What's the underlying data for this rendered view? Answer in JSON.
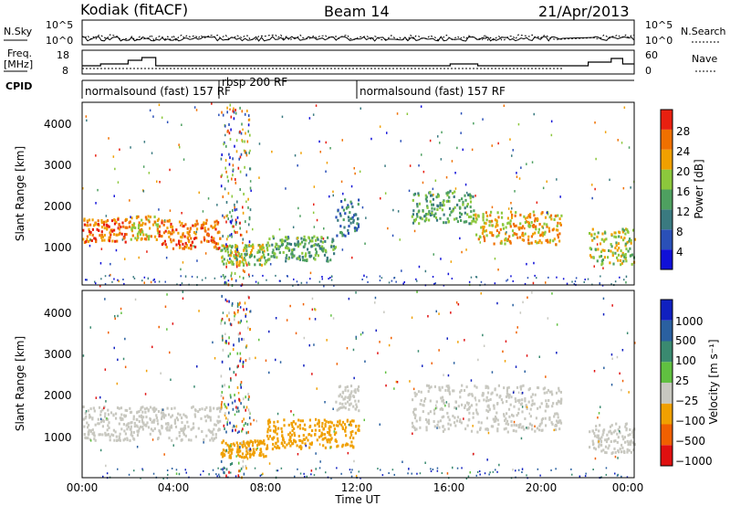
{
  "header": {
    "station": "Kodiak (fitACF)",
    "beam": "Beam 14",
    "date": "21/Apr/2013"
  },
  "noise_panel": {
    "left_label": "N.Sky",
    "right_label": "N.Search",
    "left_ticks": [
      "10^5",
      "10^0"
    ],
    "right_ticks": [
      "10^5",
      "10^0"
    ]
  },
  "freq_panel": {
    "left_label_line1": "Freq.",
    "left_label_line2": "[MHz]",
    "right_label": "Nave",
    "left_ticks": [
      "18",
      "8"
    ],
    "right_ticks": [
      "60",
      "0"
    ]
  },
  "cpid": {
    "label": "CPID",
    "segments": [
      {
        "text": "normalsound (fast) 157 RF",
        "start": "00:00",
        "end": "06:00"
      },
      {
        "text": "rbsp 200 RF",
        "start": "06:00",
        "end": "12:00"
      },
      {
        "text": "normalsound (fast) 157 RF",
        "start": "12:00",
        "end": "24:00"
      }
    ]
  },
  "power_panel": {
    "ylabel": "Slant Range [km]",
    "yticks": [
      "4000",
      "3000",
      "2000",
      "1000"
    ],
    "colorbar_label": "Power [dB]",
    "colorbar_ticks": [
      "28",
      "24",
      "20",
      "16",
      "12",
      "8",
      "4"
    ],
    "colors": [
      "#1010d8",
      "#2a50b8",
      "#3a7a80",
      "#4ea060",
      "#8cc83c",
      "#f0a000",
      "#f07000",
      "#e82010"
    ]
  },
  "velocity_panel": {
    "ylabel": "Slant Range [km]",
    "yticks": [
      "4000",
      "3000",
      "2000",
      "1000"
    ],
    "colorbar_label": "Velocity [m s⁻¹]",
    "colorbar_ticks": [
      "1000",
      "500",
      "100",
      "25",
      "−25",
      "−100",
      "−500",
      "−1000"
    ],
    "colors": [
      "#1020c0",
      "#2a60a0",
      "#3a8a70",
      "#60c040",
      "#c8c8c0",
      "#f0a000",
      "#f06000",
      "#e01010"
    ]
  },
  "x_axis": {
    "label": "Time UT",
    "ticks": [
      "00:00",
      "04:00",
      "08:00",
      "12:00",
      "16:00",
      "20:00",
      "00:00"
    ]
  },
  "chart_data": {
    "type": "heatmap",
    "title": "Kodiak (fitACF)",
    "subtitle": "Beam 14 — 21/Apr/2013",
    "xlabel": "Time UT",
    "ylabel": "Slant Range [km]",
    "xlim_hours": [
      0,
      24
    ],
    "ylim_km": [
      200,
      4600
    ],
    "grid": false,
    "power_bands": [
      {
        "t0": 0.0,
        "t1": 2.0,
        "r0": 1250,
        "r1": 1850,
        "level": 6
      },
      {
        "t0": 2.0,
        "t1": 3.3,
        "r0": 1300,
        "r1": 1900,
        "level": 5
      },
      {
        "t0": 3.3,
        "t1": 6.0,
        "r0": 1100,
        "r1": 1800,
        "level": 6
      },
      {
        "t0": 6.0,
        "t1": 8.0,
        "r0": 700,
        "r1": 1200,
        "level": 4
      },
      {
        "t0": 8.0,
        "t1": 11.0,
        "r0": 800,
        "r1": 1400,
        "level": 3
      },
      {
        "t0": 11.0,
        "t1": 12.0,
        "r0": 1400,
        "r1": 2300,
        "level": 2
      },
      {
        "t0": 14.3,
        "t1": 17.0,
        "r0": 1700,
        "r1": 2500,
        "level": 3
      },
      {
        "t0": 17.0,
        "t1": 20.8,
        "r0": 1200,
        "r1": 2000,
        "level": 5
      },
      {
        "t0": 22.0,
        "t1": 24.0,
        "r0": 700,
        "r1": 1600,
        "level": 4
      }
    ],
    "velocity_bands": [
      {
        "t0": 0.0,
        "t1": 6.0,
        "r0": 1100,
        "r1": 1900,
        "level": 4
      },
      {
        "t0": 6.0,
        "t1": 8.0,
        "r0": 700,
        "r1": 1100,
        "level": 5
      },
      {
        "t0": 8.0,
        "t1": 12.0,
        "r0": 900,
        "r1": 1600,
        "level": 5
      },
      {
        "t0": 11.0,
        "t1": 12.0,
        "r0": 1800,
        "r1": 2400,
        "level": 4
      },
      {
        "t0": 14.3,
        "t1": 20.8,
        "r0": 1300,
        "r1": 2400,
        "level": 4
      },
      {
        "t0": 22.0,
        "t1": 24.0,
        "r0": 800,
        "r1": 1500,
        "level": 4
      }
    ]
  }
}
